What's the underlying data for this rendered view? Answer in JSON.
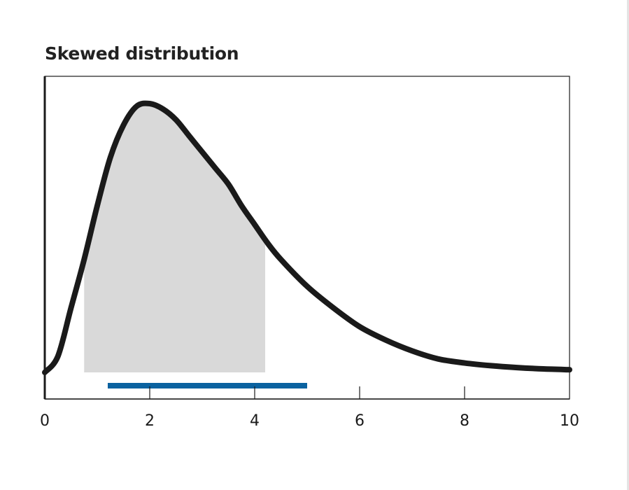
{
  "chart_data": {
    "type": "line",
    "title": "Skewed distribution",
    "xlabel": "",
    "ylabel": "",
    "xlim": [
      0,
      10
    ],
    "xticks": [
      0,
      2,
      4,
      6,
      8,
      10
    ],
    "xtick_labels": [
      "0",
      "2",
      "4",
      "6",
      "8",
      "10"
    ],
    "grid": false,
    "legend": "none",
    "series": [
      {
        "x": [
          0,
          0.25,
          0.5,
          0.75,
          1.0,
          1.25,
          1.5,
          1.75,
          2.0,
          2.25,
          2.5,
          2.75,
          3.0,
          3.25,
          3.5,
          3.75,
          4.0,
          4.25,
          4.5,
          5.0,
          5.5,
          6.0,
          6.5,
          7.0,
          7.5,
          8.0,
          8.5,
          9.0,
          9.5,
          10.0
        ],
        "y": [
          0.0,
          0.06,
          0.24,
          0.42,
          0.62,
          0.8,
          0.92,
          0.99,
          1.0,
          0.98,
          0.94,
          0.88,
          0.82,
          0.76,
          0.7,
          0.62,
          0.55,
          0.48,
          0.42,
          0.32,
          0.24,
          0.17,
          0.12,
          0.08,
          0.05,
          0.035,
          0.025,
          0.018,
          0.013,
          0.01
        ],
        "color": "#1a1a1a"
      }
    ],
    "shaded_region": {
      "x_start": 0.75,
      "x_end": 4.2,
      "color": "#d9d9d9"
    },
    "interval_bar": {
      "x_start": 1.2,
      "x_end": 5.0,
      "color": "#0a62a0"
    }
  }
}
